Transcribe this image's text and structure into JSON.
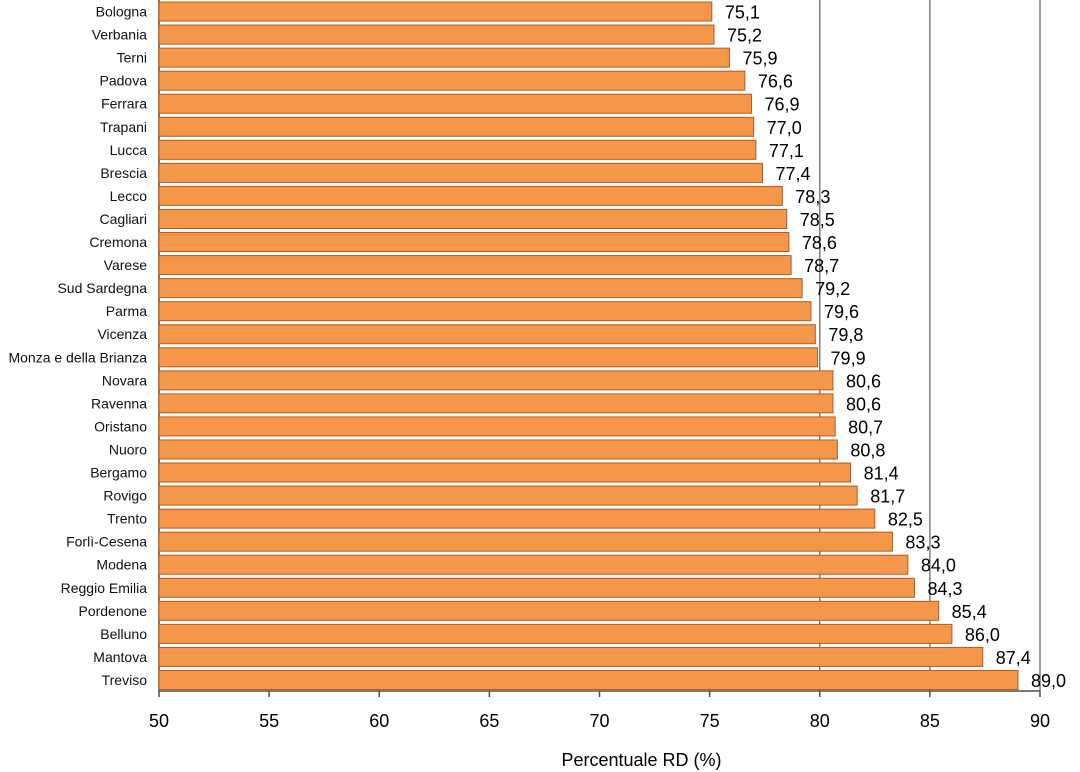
{
  "chart_data": {
    "type": "bar",
    "orientation": "horizontal",
    "categories": [
      "Bologna",
      "Verbania",
      "Terni",
      "Padova",
      "Ferrara",
      "Trapani",
      "Lucca",
      "Brescia",
      "Lecco",
      "Cagliari",
      "Cremona",
      "Varese",
      "Sud Sardegna",
      "Parma",
      "Vicenza",
      "Monza e della Brianza",
      "Novara",
      "Ravenna",
      "Oristano",
      "Nuoro",
      "Bergamo",
      "Rovigo",
      "Trento",
      "Forlì-Cesena",
      "Modena",
      "Reggio Emilia",
      "Pordenone",
      "Belluno",
      "Mantova",
      "Treviso"
    ],
    "values": [
      75.1,
      75.2,
      75.9,
      76.6,
      76.9,
      77.0,
      77.1,
      77.4,
      78.3,
      78.5,
      78.6,
      78.7,
      79.2,
      79.6,
      79.8,
      79.9,
      80.6,
      80.6,
      80.7,
      80.8,
      81.4,
      81.7,
      82.5,
      83.3,
      84.0,
      84.3,
      85.4,
      86.0,
      87.4,
      89.0
    ],
    "value_labels": [
      "75,1",
      "75,2",
      "75,9",
      "76,6",
      "76,9",
      "77,0",
      "77,1",
      "77,4",
      "78,3",
      "78,5",
      "78,6",
      "78,7",
      "79,2",
      "79,6",
      "79,8",
      "79,9",
      "80,6",
      "80,6",
      "80,7",
      "80,8",
      "81,4",
      "81,7",
      "82,5",
      "83,3",
      "84,0",
      "84,3",
      "85,4",
      "86,0",
      "87,4",
      "89,0"
    ],
    "xlim": [
      50,
      90
    ],
    "x_ticks": [
      50,
      55,
      60,
      65,
      70,
      75,
      80,
      85,
      90
    ],
    "x_tick_labels": [
      "50",
      "55",
      "60",
      "65",
      "70",
      "75",
      "80",
      "85",
      "90"
    ],
    "vertical_gridlines_at": [
      80,
      85,
      90
    ],
    "xlabel": "Percentuale RD (%)",
    "ylabel": "",
    "title": "",
    "bar_color": "#F4974A",
    "bar_edge_color": "#B85A1A",
    "grid_color": "#7F7F7F"
  }
}
